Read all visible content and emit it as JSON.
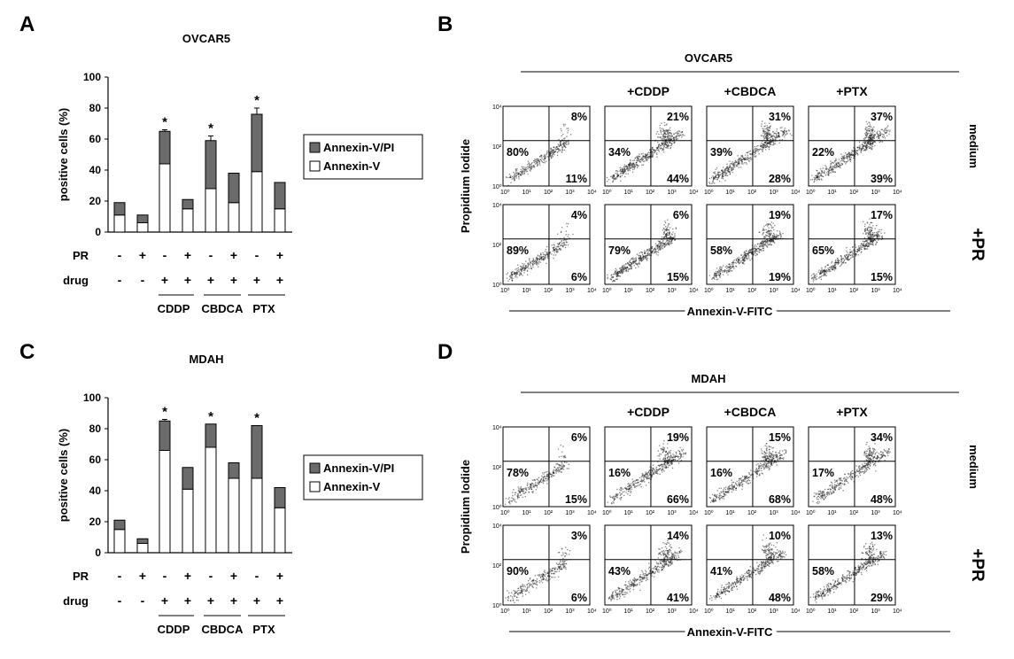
{
  "colors": {
    "stack_top": "#6b6b6b",
    "stack_bottom": "#ffffff",
    "flow_dense": "#1e1e1e",
    "flow_panel_bg": "#ffffff"
  },
  "panels": {
    "A": {
      "letter": "A",
      "title": "OVCAR5"
    },
    "B": {
      "letter": "B",
      "title": "OVCAR5"
    },
    "C": {
      "letter": "C",
      "title": "MDAH"
    },
    "D": {
      "letter": "D",
      "title": "MDAH"
    }
  },
  "chart_data": [
    {
      "id": "A",
      "type": "bar",
      "stacked": true,
      "title": "OVCAR5",
      "ylabel": "positive cells (%)",
      "ylim": [
        0,
        100
      ],
      "yticks": [
        0,
        20,
        40,
        60,
        80,
        100
      ],
      "legend": [
        "Annexin-V/PI",
        "Annexin-V"
      ],
      "row_labels": {
        "pr": "PR",
        "drug": "drug"
      },
      "pr": [
        "-",
        "+",
        "-",
        "+",
        "-",
        "+",
        "-",
        "+"
      ],
      "drug": [
        "-",
        "-",
        "+",
        "+",
        "+",
        "+",
        "+",
        "+"
      ],
      "groups": [
        "CDDP",
        "CBDCA",
        "PTX"
      ],
      "series": [
        {
          "name": "Annexin-V",
          "values": [
            11,
            6,
            44,
            15,
            28,
            19,
            39,
            15
          ]
        },
        {
          "name": "Annexin-V/PI",
          "values": [
            8,
            5,
            21,
            6,
            31,
            19,
            37,
            17
          ]
        }
      ],
      "errors": [
        0,
        0,
        1,
        0,
        3,
        0,
        4,
        0
      ],
      "significant": [
        false,
        false,
        true,
        false,
        true,
        false,
        true,
        false
      ],
      "star": "*"
    },
    {
      "id": "C",
      "type": "bar",
      "stacked": true,
      "title": "MDAH",
      "ylabel": "positive cells (%)",
      "ylim": [
        0,
        100
      ],
      "yticks": [
        0,
        20,
        40,
        60,
        80,
        100
      ],
      "legend": [
        "Annexin-V/PI",
        "Annexin-V"
      ],
      "row_labels": {
        "pr": "PR",
        "drug": "drug"
      },
      "pr": [
        "-",
        "+",
        "-",
        "+",
        "-",
        "+",
        "-",
        "+"
      ],
      "drug": [
        "-",
        "-",
        "+",
        "+",
        "+",
        "+",
        "+",
        "+"
      ],
      "groups": [
        "CDDP",
        "CBDCA",
        "PTX"
      ],
      "series": [
        {
          "name": "Annexin-V",
          "values": [
            15,
            6,
            66,
            41,
            68,
            48,
            48,
            29
          ]
        },
        {
          "name": "Annexin-V/PI",
          "values": [
            6,
            3,
            19,
            14,
            15,
            10,
            34,
            13
          ]
        }
      ],
      "errors": [
        0,
        0,
        1,
        0,
        0,
        0,
        0,
        0
      ],
      "significant": [
        false,
        false,
        true,
        false,
        true,
        false,
        true,
        false
      ],
      "star": "*"
    },
    {
      "id": "B",
      "type": "scatter",
      "subtype": "flow-cytometry-quadrant",
      "title": "OVCAR5",
      "xlabel": "Annexin-V-FITC",
      "ylabel": "Propidium Iodide",
      "columns": [
        "",
        "+CDDP",
        "+CBDCA",
        "+PTX"
      ],
      "rows": [
        "medium",
        "+PR"
      ],
      "axis_ticks": [
        "10⁰",
        "10¹",
        "10²",
        "10³",
        "10⁴"
      ],
      "plots": [
        {
          "ul": "80%",
          "ur": "8%",
          "lr": "11%",
          "density": 0.6,
          "spread": 0.5
        },
        {
          "ul": "34%",
          "ur": "21%",
          "lr": "44%",
          "density": 1.0,
          "spread": 1.0
        },
        {
          "ul": "39%",
          "ur": "31%",
          "lr": "28%",
          "density": 1.0,
          "spread": 1.2
        },
        {
          "ul": "22%",
          "ur": "37%",
          "lr": "39%",
          "density": 1.0,
          "spread": 1.3
        },
        {
          "ul": "89%",
          "ur": "4%",
          "lr": "6%",
          "density": 0.6,
          "spread": 0.4
        },
        {
          "ul": "79%",
          "ur": "6%",
          "lr": "15%",
          "density": 0.9,
          "spread": 0.7
        },
        {
          "ul": "58%",
          "ur": "19%",
          "lr": "19%",
          "density": 0.9,
          "spread": 0.9
        },
        {
          "ul": "65%",
          "ur": "17%",
          "lr": "15%",
          "density": 0.9,
          "spread": 0.9
        }
      ]
    },
    {
      "id": "D",
      "type": "scatter",
      "subtype": "flow-cytometry-quadrant",
      "title": "MDAH",
      "xlabel": "Annexin-V-FITC",
      "ylabel": "Propidium Iodide",
      "columns": [
        "",
        "+CDDP",
        "+CBDCA",
        "+PTX"
      ],
      "rows": [
        "medium",
        "+PR"
      ],
      "axis_ticks": [
        "10⁰",
        "10¹",
        "10²",
        "10³",
        "10⁴"
      ],
      "plots": [
        {
          "ul": "78%",
          "ur": "6%",
          "lr": "15%",
          "density": 0.5,
          "spread": 0.4
        },
        {
          "ul": "16%",
          "ur": "19%",
          "lr": "66%",
          "density": 0.8,
          "spread": 1.1
        },
        {
          "ul": "16%",
          "ur": "15%",
          "lr": "68%",
          "density": 0.8,
          "spread": 1.1
        },
        {
          "ul": "17%",
          "ur": "34%",
          "lr": "48%",
          "density": 0.8,
          "spread": 1.2
        },
        {
          "ul": "90%",
          "ur": "3%",
          "lr": "6%",
          "density": 0.5,
          "spread": 0.4
        },
        {
          "ul": "43%",
          "ur": "14%",
          "lr": "41%",
          "density": 0.8,
          "spread": 1.0
        },
        {
          "ul": "41%",
          "ur": "10%",
          "lr": "48%",
          "density": 0.8,
          "spread": 1.0
        },
        {
          "ul": "58%",
          "ur": "13%",
          "lr": "29%",
          "density": 0.8,
          "spread": 1.0
        }
      ]
    }
  ]
}
